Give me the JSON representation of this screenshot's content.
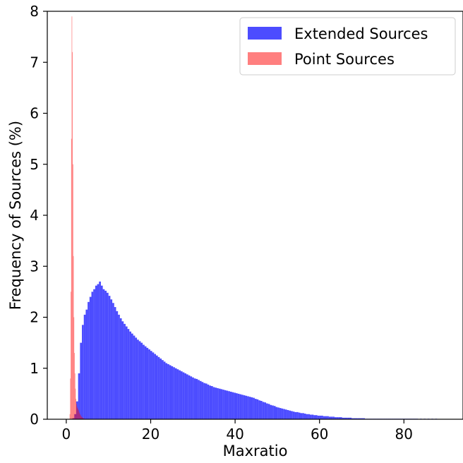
{
  "chart_data": {
    "type": "bar",
    "xlabel": "Maxratio",
    "ylabel": "Frequency of Sources (%)",
    "xlim": [
      -4.5,
      94
    ],
    "ylim": [
      0,
      8
    ],
    "xticks": [
      0,
      20,
      40,
      60,
      80
    ],
    "yticks": [
      0,
      1,
      2,
      3,
      4,
      5,
      6,
      7,
      8
    ],
    "legend_position": "top-right",
    "series": [
      {
        "name": "Extended Sources",
        "color": "#0000ff",
        "alpha": 0.7,
        "bin_start": 1.0,
        "bin_width": 0.45,
        "values": [
          0.0,
          0.02,
          0.1,
          0.35,
          0.9,
          1.5,
          1.85,
          2.05,
          2.15,
          2.3,
          2.4,
          2.5,
          2.55,
          2.62,
          2.65,
          2.7,
          2.62,
          2.55,
          2.52,
          2.48,
          2.42,
          2.35,
          2.28,
          2.2,
          2.12,
          2.05,
          1.98,
          1.92,
          1.87,
          1.82,
          1.77,
          1.72,
          1.68,
          1.64,
          1.6,
          1.56,
          1.53,
          1.5,
          1.46,
          1.43,
          1.4,
          1.37,
          1.34,
          1.31,
          1.28,
          1.25,
          1.22,
          1.19,
          1.16,
          1.13,
          1.1,
          1.08,
          1.06,
          1.04,
          1.02,
          1.0,
          0.98,
          0.96,
          0.94,
          0.92,
          0.9,
          0.88,
          0.86,
          0.84,
          0.82,
          0.8,
          0.79,
          0.77,
          0.75,
          0.73,
          0.71,
          0.7,
          0.68,
          0.66,
          0.65,
          0.63,
          0.62,
          0.61,
          0.6,
          0.59,
          0.58,
          0.57,
          0.56,
          0.55,
          0.54,
          0.53,
          0.52,
          0.51,
          0.5,
          0.49,
          0.48,
          0.47,
          0.46,
          0.45,
          0.44,
          0.43,
          0.42,
          0.4,
          0.39,
          0.37,
          0.36,
          0.34,
          0.33,
          0.31,
          0.3,
          0.28,
          0.27,
          0.26,
          0.24,
          0.23,
          0.22,
          0.21,
          0.2,
          0.19,
          0.18,
          0.17,
          0.16,
          0.15,
          0.14,
          0.14,
          0.13,
          0.12,
          0.12,
          0.11,
          0.1,
          0.1,
          0.09,
          0.09,
          0.08,
          0.08,
          0.07,
          0.07,
          0.07,
          0.06,
          0.06,
          0.06,
          0.05,
          0.05,
          0.05,
          0.04,
          0.04,
          0.04,
          0.04,
          0.03,
          0.03,
          0.03,
          0.03,
          0.03,
          0.02,
          0.02,
          0.02,
          0.02,
          0.02,
          0.02,
          0.02,
          0.01,
          0.01,
          0.01,
          0.01,
          0.01,
          0.01,
          0.01,
          0.01,
          0.01,
          0.01,
          0.01,
          0.01,
          0.01,
          0.01,
          0.01,
          0.01,
          0.01,
          0.01,
          0.01,
          0.01,
          0.01,
          0.01,
          0.01,
          0.01,
          0.01,
          0.01,
          0.01,
          0.01,
          0.0,
          0.01,
          0.0,
          0.01,
          0.0,
          0.01,
          0.0,
          0.01,
          0.0,
          0.01,
          0.0,
          0.0
        ]
      },
      {
        "name": "Point Sources",
        "color": "#ff0000",
        "alpha": 0.5,
        "bin_start": 0.8,
        "bin_width": 0.12,
        "values": [
          0.1,
          0.8,
          2.5,
          5.5,
          7.9,
          7.2,
          5.0,
          3.2,
          2.0,
          1.3,
          0.9,
          0.6,
          0.4,
          0.3,
          0.25,
          0.22,
          0.2,
          0.18,
          0.15,
          0.12,
          0.1,
          0.08,
          0.06,
          0.05,
          0.04,
          0.03,
          0.02,
          0.02,
          0.01,
          0.01
        ]
      }
    ]
  }
}
